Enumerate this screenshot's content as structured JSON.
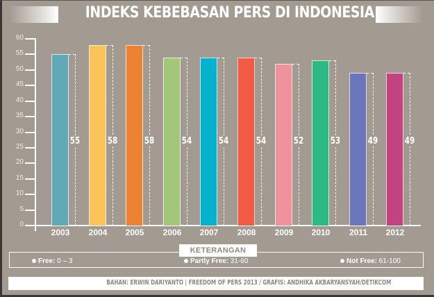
{
  "title": "INDEKS KEBEBASAN PERS DI INDONESIA",
  "chart_data": {
    "type": "bar",
    "title": "INDEKS KEBEBASAN PERS DI INDONESIA",
    "xlabel": "",
    "ylabel": "",
    "ylim": [
      0,
      60
    ],
    "yticks": [
      0,
      5,
      10,
      15,
      20,
      25,
      30,
      35,
      40,
      45,
      50,
      55,
      60
    ],
    "grid": false,
    "categories": [
      "2003",
      "2004",
      "2005",
      "2006",
      "2007",
      "2008",
      "2009",
      "2010",
      "2011",
      "2012"
    ],
    "values": [
      55,
      58,
      58,
      54,
      54,
      54,
      52,
      53,
      49,
      49
    ],
    "colors": [
      "#62a9b6",
      "#fbc45a",
      "#ec8234",
      "#a4c67a",
      "#07b0cd",
      "#f15a45",
      "#ef929d",
      "#2cb985",
      "#6c75b9",
      "#c14380"
    ],
    "value_labels": [
      "55",
      "58",
      "58",
      "54",
      "54",
      "54",
      "52",
      "53",
      "49",
      "49"
    ]
  },
  "legend": {
    "title": "KETERANGAN",
    "items": [
      {
        "label": "Free:",
        "range": " 0 – 3"
      },
      {
        "label": "Partly Free:",
        "range": " 31-60"
      },
      {
        "label": "Not Free:",
        "range": " 61-100"
      }
    ]
  },
  "footer": {
    "credit": "BAHAN: ERWIN DARIYANTO | FREEDOM OF PERS 2013 / GRAFIS: ANDHIKA AKBARYANSYAH/DETIKCOM"
  }
}
